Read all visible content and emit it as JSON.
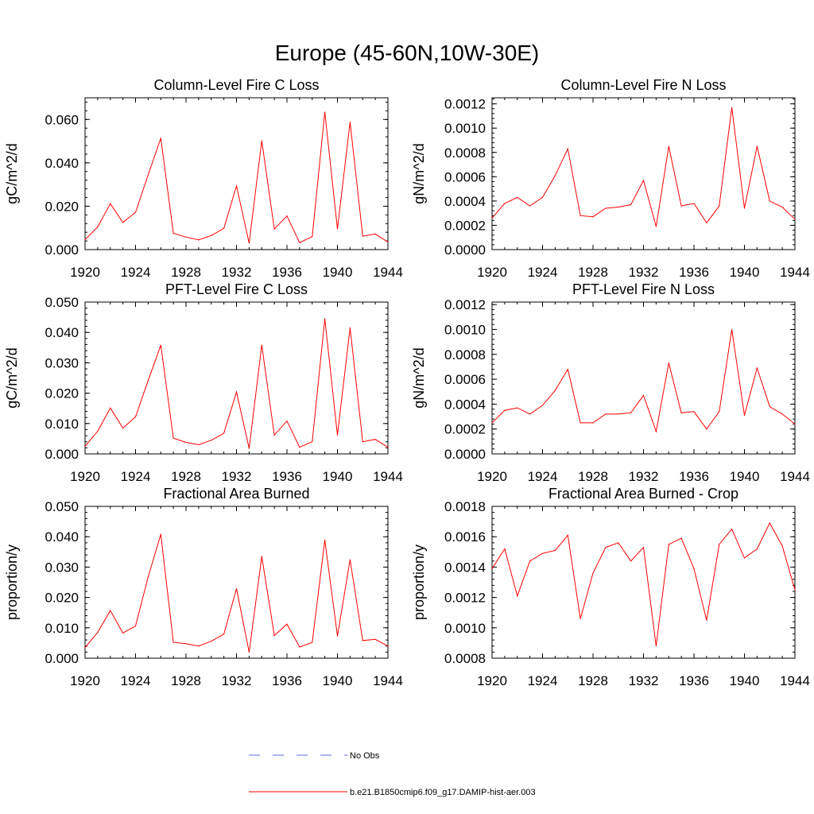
{
  "figure": {
    "title": "Europe (45-60N,10W-30E)"
  },
  "legend": {
    "items": [
      {
        "label": "No Obs",
        "color": "#5b6fd6",
        "style": "dashed"
      },
      {
        "label": "b.e21.B1850cmip6.f09_g17.DAMIP-hist-aer.003",
        "color": "#ff0000",
        "style": "solid"
      }
    ]
  },
  "chart_data": [
    {
      "type": "line",
      "title": "Column-Level Fire C Loss",
      "ylabel": "gC/m^2/d",
      "xlim": [
        1920,
        1944
      ],
      "ylim": [
        0,
        0.07
      ],
      "xticks": [
        1920,
        1924,
        1928,
        1932,
        1936,
        1940,
        1944
      ],
      "yticks": [
        0.0,
        0.02,
        0.04,
        0.06
      ],
      "ytick_labels": [
        "0.000",
        "0.020",
        "0.040",
        "0.060"
      ],
      "x": [
        1920,
        1921,
        1922,
        1923,
        1924,
        1925,
        1926,
        1927,
        1928,
        1929,
        1930,
        1931,
        1932,
        1933,
        1934,
        1935,
        1936,
        1937,
        1938,
        1939,
        1940,
        1941,
        1942,
        1943,
        1944
      ],
      "series": [
        {
          "name": "b.e21.B1850cmip6.f09_g17.DAMIP-hist-aer.003",
          "color": "#ff0000",
          "values": [
            0.0045,
            0.0105,
            0.0212,
            0.0125,
            0.0172,
            0.0345,
            0.0514,
            0.0075,
            0.0058,
            0.0045,
            0.0065,
            0.0098,
            0.0294,
            0.003,
            0.0502,
            0.0095,
            0.0155,
            0.0032,
            0.006,
            0.0634,
            0.0095,
            0.0588,
            0.0062,
            0.0072,
            0.0035
          ]
        }
      ]
    },
    {
      "type": "line",
      "title": "Column-Level Fire N Loss",
      "ylabel": "gN/m^2/d",
      "xlim": [
        1920,
        1944
      ],
      "ylim": [
        0,
        0.00125
      ],
      "xticks": [
        1920,
        1924,
        1928,
        1932,
        1936,
        1940,
        1944
      ],
      "yticks": [
        0.0,
        0.0002,
        0.0004,
        0.0006,
        0.0008,
        0.001,
        0.0012
      ],
      "ytick_labels": [
        "0.0000",
        "0.0002",
        "0.0004",
        "0.0006",
        "0.0008",
        "0.0010",
        "0.0012"
      ],
      "x": [
        1920,
        1921,
        1922,
        1923,
        1924,
        1925,
        1926,
        1927,
        1928,
        1929,
        1930,
        1931,
        1932,
        1933,
        1934,
        1935,
        1936,
        1937,
        1938,
        1939,
        1940,
        1941,
        1942,
        1943,
        1944
      ],
      "series": [
        {
          "name": "b.e21.B1850cmip6.f09_g17.DAMIP-hist-aer.003",
          "color": "#ff0000",
          "values": [
            0.00026,
            0.00038,
            0.00043,
            0.00036,
            0.00043,
            0.00061,
            0.00083,
            0.00028,
            0.00027,
            0.00034,
            0.00035,
            0.00037,
            0.00057,
            0.00019,
            0.00085,
            0.00036,
            0.00038,
            0.00022,
            0.00036,
            0.00117,
            0.00034,
            0.00085,
            0.0004,
            0.00035,
            0.00025
          ]
        }
      ]
    },
    {
      "type": "line",
      "title": "PFT-Level Fire C Loss",
      "ylabel": "gC/m^2/d",
      "xlim": [
        1920,
        1944
      ],
      "ylim": [
        0,
        0.05
      ],
      "xticks": [
        1920,
        1924,
        1928,
        1932,
        1936,
        1940,
        1944
      ],
      "yticks": [
        0.0,
        0.01,
        0.02,
        0.03,
        0.04,
        0.05
      ],
      "ytick_labels": [
        "0.000",
        "0.010",
        "0.020",
        "0.030",
        "0.040",
        "0.050"
      ],
      "x": [
        1920,
        1921,
        1922,
        1923,
        1924,
        1925,
        1926,
        1927,
        1928,
        1929,
        1930,
        1931,
        1932,
        1933,
        1934,
        1935,
        1936,
        1937,
        1938,
        1939,
        1940,
        1941,
        1942,
        1943,
        1944
      ],
      "series": [
        {
          "name": "b.e21.B1850cmip6.f09_g17.DAMIP-hist-aer.003",
          "color": "#ff0000",
          "values": [
            0.0025,
            0.0075,
            0.0151,
            0.0085,
            0.0122,
            0.0242,
            0.0358,
            0.0052,
            0.0038,
            0.003,
            0.0045,
            0.0068,
            0.0204,
            0.0018,
            0.0358,
            0.0062,
            0.0108,
            0.0022,
            0.004,
            0.0445,
            0.0062,
            0.0415,
            0.004,
            0.0048,
            0.0022
          ]
        }
      ]
    },
    {
      "type": "line",
      "title": "PFT-Level Fire N Loss",
      "ylabel": "gN/m^2/d",
      "xlim": [
        1920,
        1944
      ],
      "ylim": [
        0,
        0.00122
      ],
      "xticks": [
        1920,
        1924,
        1928,
        1932,
        1936,
        1940,
        1944
      ],
      "yticks": [
        0.0,
        0.0002,
        0.0004,
        0.0006,
        0.0008,
        0.001,
        0.0012
      ],
      "ytick_labels": [
        "0.0000",
        "0.0002",
        "0.0004",
        "0.0006",
        "0.0008",
        "0.0010",
        "0.0012"
      ],
      "x": [
        1920,
        1921,
        1922,
        1923,
        1924,
        1925,
        1926,
        1927,
        1928,
        1929,
        1930,
        1931,
        1932,
        1933,
        1934,
        1935,
        1936,
        1937,
        1938,
        1939,
        1940,
        1941,
        1942,
        1943,
        1944
      ],
      "series": [
        {
          "name": "b.e21.B1850cmip6.f09_g17.DAMIP-hist-aer.003",
          "color": "#ff0000",
          "values": [
            0.00025,
            0.00035,
            0.00037,
            0.00032,
            0.00039,
            0.00051,
            0.00068,
            0.00025,
            0.00025,
            0.00032,
            0.00032,
            0.00033,
            0.00047,
            0.00018,
            0.00073,
            0.00033,
            0.00034,
            0.0002,
            0.00034,
            0.001,
            0.00031,
            0.00069,
            0.00038,
            0.00032,
            0.00024
          ]
        }
      ]
    },
    {
      "type": "line",
      "title": "Fractional Area Burned",
      "ylabel": "proportion/y",
      "xlim": [
        1920,
        1944
      ],
      "ylim": [
        0,
        0.05
      ],
      "xticks": [
        1920,
        1924,
        1928,
        1932,
        1936,
        1940,
        1944
      ],
      "yticks": [
        0.0,
        0.01,
        0.02,
        0.03,
        0.04,
        0.05
      ],
      "ytick_labels": [
        "0.000",
        "0.010",
        "0.020",
        "0.030",
        "0.040",
        "0.050"
      ],
      "x": [
        1920,
        1921,
        1922,
        1923,
        1924,
        1925,
        1926,
        1927,
        1928,
        1929,
        1930,
        1931,
        1932,
        1933,
        1934,
        1935,
        1936,
        1937,
        1938,
        1939,
        1940,
        1941,
        1942,
        1943,
        1944
      ],
      "series": [
        {
          "name": "b.e21.B1850cmip6.f09_g17.DAMIP-hist-aer.003",
          "color": "#ff0000",
          "values": [
            0.0035,
            0.0085,
            0.0157,
            0.0083,
            0.0106,
            0.0268,
            0.0408,
            0.0052,
            0.0048,
            0.004,
            0.0056,
            0.0079,
            0.0229,
            0.002,
            0.0335,
            0.0075,
            0.0112,
            0.0037,
            0.0052,
            0.0389,
            0.0073,
            0.0324,
            0.0058,
            0.0062,
            0.004
          ]
        }
      ]
    },
    {
      "type": "line",
      "title": "Fractional Area Burned - Crop",
      "ylabel": "proportion/y",
      "xlim": [
        1920,
        1944
      ],
      "ylim": [
        0.0008,
        0.0018
      ],
      "xticks": [
        1920,
        1924,
        1928,
        1932,
        1936,
        1940,
        1944
      ],
      "yticks": [
        0.0008,
        0.001,
        0.0012,
        0.0014,
        0.0016,
        0.0018
      ],
      "ytick_labels": [
        "0.0008",
        "0.0010",
        "0.0012",
        "0.0014",
        "0.0016",
        "0.0018"
      ],
      "x": [
        1920,
        1921,
        1922,
        1923,
        1924,
        1925,
        1926,
        1927,
        1928,
        1929,
        1930,
        1931,
        1932,
        1933,
        1934,
        1935,
        1936,
        1937,
        1938,
        1939,
        1940,
        1941,
        1942,
        1943,
        1944
      ],
      "series": [
        {
          "name": "b.e21.B1850cmip6.f09_g17.DAMIP-hist-aer.003",
          "color": "#ff0000",
          "values": [
            0.00139,
            0.00152,
            0.00121,
            0.00144,
            0.00149,
            0.00151,
            0.00161,
            0.00106,
            0.00136,
            0.00153,
            0.00156,
            0.00144,
            0.00153,
            0.00088,
            0.00155,
            0.00159,
            0.00139,
            0.00105,
            0.00155,
            0.00165,
            0.00146,
            0.00152,
            0.00169,
            0.00154,
            0.00125
          ]
        }
      ]
    }
  ]
}
